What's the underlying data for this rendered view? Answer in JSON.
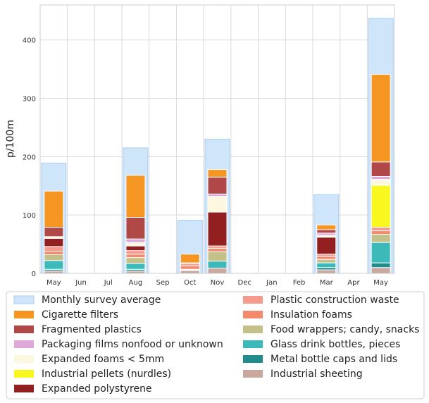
{
  "chart_data": {
    "type": "bar",
    "title": "",
    "xlabel": "",
    "ylabel": "p/100m",
    "ylim": [
      0,
      460
    ],
    "yticks": [
      0,
      100,
      200,
      300,
      400
    ],
    "grid": true,
    "legend_position": "bottom",
    "categories": [
      "May",
      "Jun",
      "Jul",
      "Aug",
      "Sep",
      "Oct",
      "Nov",
      "Dec",
      "Jan",
      "Feb",
      "Mar",
      "Apr",
      "May"
    ],
    "monthly_survey_average": {
      "name": "Monthly survey average",
      "color": "#cfe5fa",
      "values": [
        189,
        0,
        0,
        215,
        0,
        91,
        230,
        0,
        0,
        0,
        135,
        0,
        437
      ]
    },
    "series": [
      {
        "name": "Industrial sheeting",
        "color": "#c9a8a0",
        "values": [
          4,
          0,
          0,
          4,
          0,
          5,
          9,
          0,
          0,
          0,
          6,
          0,
          10
        ]
      },
      {
        "name": "Metal bottle caps and lids",
        "color": "#208c8c",
        "values": [
          3,
          0,
          0,
          3,
          0,
          0,
          0,
          0,
          0,
          0,
          4,
          0,
          8
        ]
      },
      {
        "name": "Glass drink bottles, pieces",
        "color": "#3cb9b9",
        "values": [
          15,
          0,
          0,
          10,
          0,
          1,
          12,
          0,
          0,
          0,
          8,
          0,
          35
        ]
      },
      {
        "name": "Food wrappers; candy, snacks",
        "color": "#c4c08a",
        "values": [
          10,
          0,
          0,
          10,
          0,
          1,
          16,
          0,
          0,
          0,
          6,
          0,
          14
        ]
      },
      {
        "name": "Insulation foams",
        "color": "#f48a6c",
        "values": [
          6,
          0,
          0,
          6,
          0,
          6,
          6,
          0,
          0,
          0,
          5,
          0,
          6
        ]
      },
      {
        "name": "Plastic construction waste",
        "color": "#f59a8c",
        "values": [
          8,
          0,
          0,
          6,
          0,
          4,
          4,
          0,
          0,
          0,
          4,
          0,
          6
        ]
      },
      {
        "name": "Expanded polystyrene",
        "color": "#932020",
        "values": [
          14,
          0,
          0,
          8,
          0,
          1,
          58,
          0,
          0,
          0,
          29,
          0,
          0
        ]
      },
      {
        "name": "Industrial pellets (nurdles)",
        "color": "#f8f820",
        "values": [
          0,
          0,
          0,
          0,
          0,
          0,
          0,
          0,
          0,
          0,
          0,
          0,
          72
        ]
      },
      {
        "name": "Expanded foams < 5mm",
        "color": "#fcf8e0",
        "values": [
          3,
          0,
          0,
          6,
          0,
          0,
          27,
          0,
          0,
          0,
          3,
          0,
          10
        ]
      },
      {
        "name": "Packaging films nonfood or unknown",
        "color": "#e0a8d8",
        "values": [
          0,
          0,
          0,
          6,
          0,
          0,
          4,
          0,
          0,
          0,
          4,
          0,
          5
        ]
      },
      {
        "name": "Fragmented plastics",
        "color": "#b04848",
        "values": [
          16,
          0,
          0,
          37,
          0,
          0,
          29,
          0,
          0,
          0,
          6,
          0,
          25
        ]
      },
      {
        "name": "Cigarette filters",
        "color": "#f59622",
        "values": [
          62,
          0,
          0,
          72,
          0,
          15,
          13,
          0,
          0,
          0,
          8,
          0,
          150
        ]
      }
    ]
  },
  "legend": {
    "left": [
      "Monthly survey average",
      "Cigarette filters",
      "Fragmented plastics",
      "Packaging films nonfood or unknown",
      "Expanded foams < 5mm",
      "Industrial pellets (nurdles)",
      "Expanded polystyrene"
    ],
    "right": [
      "Plastic construction waste",
      "Insulation foams",
      "Food wrappers; candy, snacks",
      "Glass drink bottles, pieces",
      "Metal bottle caps and lids",
      "Industrial sheeting"
    ]
  },
  "legend_colors": {
    "Monthly survey average": "#cfe5fa",
    "Cigarette filters": "#f59622",
    "Fragmented plastics": "#b04848",
    "Packaging films nonfood or unknown": "#e0a8d8",
    "Expanded foams < 5mm": "#fcf8e0",
    "Industrial pellets (nurdles)": "#f8f820",
    "Expanded polystyrene": "#932020",
    "Plastic construction waste": "#f59a8c",
    "Insulation foams": "#f48a6c",
    "Food wrappers; candy, snacks": "#c4c08a",
    "Glass drink bottles, pieces": "#3cb9b9",
    "Metal bottle caps and lids": "#208c8c",
    "Industrial sheeting": "#c9a8a0"
  }
}
